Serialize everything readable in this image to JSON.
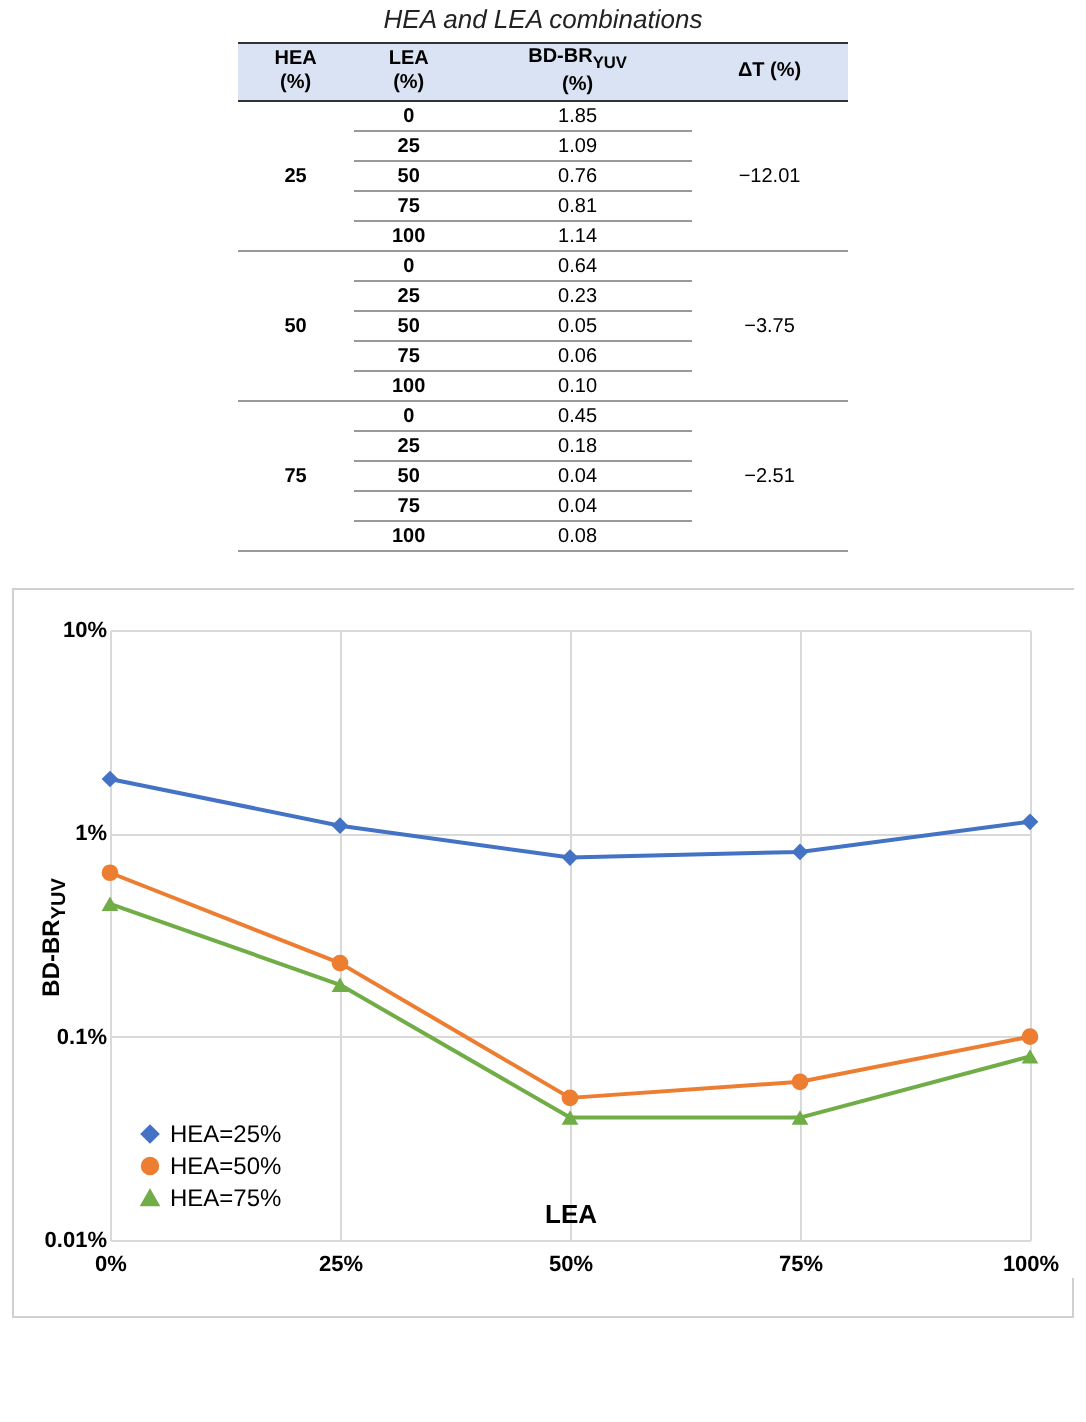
{
  "chart_data": {
    "type": "line",
    "title": "HEA and LEA combinations",
    "categories": [
      "0%",
      "25%",
      "50%",
      "75%",
      "100%"
    ],
    "series": [
      {
        "name": "HEA=25%",
        "color": "#4472c4",
        "marker": "diamond",
        "values": [
          1.85,
          1.09,
          0.76,
          0.81,
          1.14
        ]
      },
      {
        "name": "HEA=50%",
        "color": "#ed7d31",
        "marker": "circle",
        "values": [
          0.64,
          0.23,
          0.05,
          0.06,
          0.1
        ]
      },
      {
        "name": "HEA=75%",
        "color": "#70ad47",
        "marker": "triangle",
        "values": [
          0.45,
          0.18,
          0.04,
          0.04,
          0.08
        ]
      }
    ],
    "log": "y",
    "ylim": [
      0.01,
      10
    ],
    "yticks": [
      {
        "value": 0.01,
        "label": "0.01%"
      },
      {
        "value": 0.1,
        "label": "0.1%"
      },
      {
        "value": 1,
        "label": "1%"
      },
      {
        "value": 10,
        "label": "10%"
      }
    ],
    "xlabel": "LEA",
    "ylabel": "BD-BR$_{YUV}$",
    "grid": true,
    "legend": "bottom left",
    "annotations": [
      "HEA\n(%)",
      "LEA\n(%)",
      "BD-BR$_{YUV}$\n(%)",
      "ΔT (%)",
      "25",
      "50",
      "75",
      "0",
      "25",
      "50",
      "75",
      "100",
      "−12.01",
      "−3.75",
      "−2.51",
      "1.85",
      "1.09",
      "0.76",
      "0.81",
      "1.14",
      "0.64",
      "0.23",
      "0.05",
      "0.06",
      "0.10",
      "0.45",
      "0.18",
      "0.04",
      "0.04",
      "0.08"
    ]
  }
}
